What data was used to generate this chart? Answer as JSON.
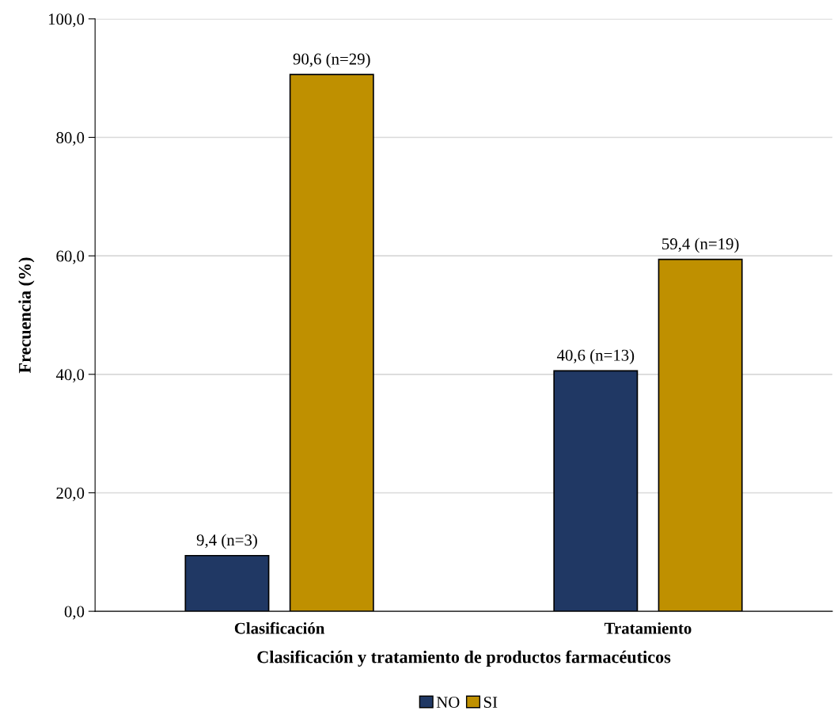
{
  "chart_data": {
    "type": "bar",
    "xlabel": "Clasificación y tratamiento de productos farmacéuticos",
    "ylabel": "Frecuencia (%)",
    "categories": [
      "Clasificación",
      "Tratamiento"
    ],
    "series": [
      {
        "name": "NO",
        "color": "#203864",
        "values": [
          9.4,
          40.6
        ],
        "value_labels": [
          "9,4 (n=3)",
          "40,6 (n=13)"
        ]
      },
      {
        "name": "SI",
        "color": "#bf9000",
        "values": [
          90.6,
          59.4
        ],
        "value_labels": [
          "90,6 (n=29)",
          "59,4 (n=19)"
        ]
      }
    ],
    "ylim": [
      0,
      100
    ],
    "yticks": [
      {
        "value": 0,
        "label": "0,0"
      },
      {
        "value": 20,
        "label": "20,0"
      },
      {
        "value": 40,
        "label": "40,0"
      },
      {
        "value": 60,
        "label": "60,0"
      },
      {
        "value": 80,
        "label": "80,0"
      },
      {
        "value": 100,
        "label": "100,0"
      }
    ],
    "grid": "y",
    "legend": "bottom"
  }
}
